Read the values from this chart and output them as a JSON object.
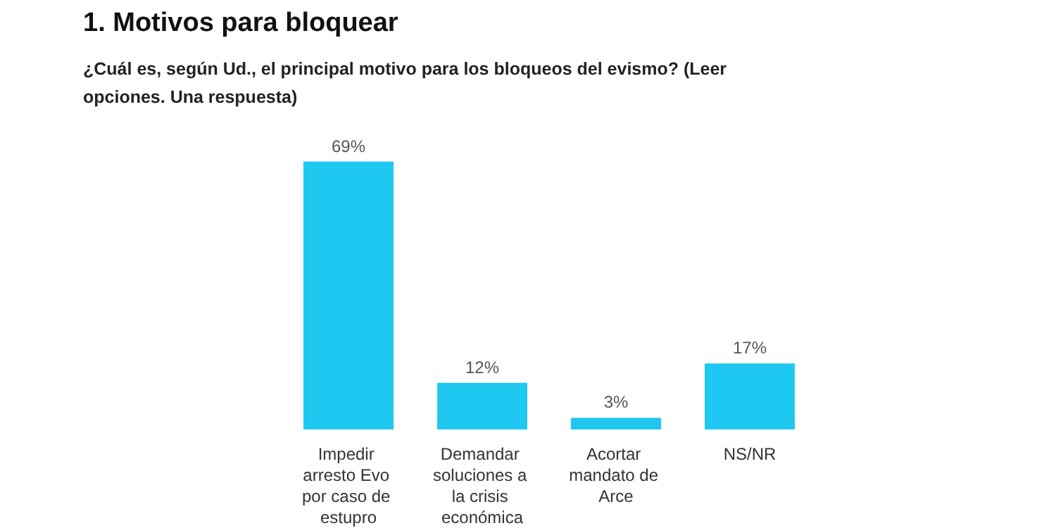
{
  "chart_data": {
    "type": "bar",
    "title": "1. Motivos para bloquear",
    "subtitle": "¿Cuál es, según Ud., el principal motivo para los bloqueos del evismo? (Leer opciones. Una respuesta)",
    "categories": [
      "Impedir arresto Evo por caso de estupro",
      "Demandar soluciones a la crisis económica",
      "Acortar mandato de Arce",
      "NS/NR"
    ],
    "values": [
      69,
      12,
      3,
      17
    ],
    "value_labels": [
      "69%",
      "12%",
      "3%",
      "17%"
    ],
    "color": "#1ec8f0"
  }
}
